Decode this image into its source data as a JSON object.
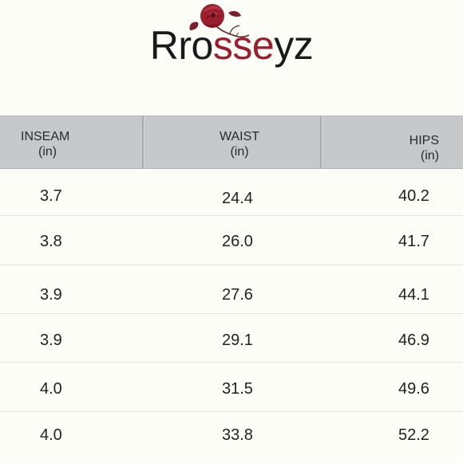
{
  "brand": {
    "part1": "Rro",
    "part2": "sse",
    "part3": "yz",
    "dark_color": "#1a1a1a",
    "accent_color": "#9a1e2e",
    "icon": "rose-icon"
  },
  "table": {
    "headers": [
      {
        "label": "INSEAM",
        "unit": "(in)"
      },
      {
        "label": "WAIST",
        "unit": "(in)"
      },
      {
        "label": "HIPS",
        "unit": "(in)"
      }
    ],
    "rows": [
      {
        "inseam": "3.7",
        "waist": "24.4",
        "hips": "40.2"
      },
      {
        "inseam": "3.8",
        "waist": "26.0",
        "hips": "41.7"
      },
      {
        "inseam": "3.9",
        "waist": "27.6",
        "hips": "44.1"
      },
      {
        "inseam": "3.9",
        "waist": "29.1",
        "hips": "46.9"
      },
      {
        "inseam": "4.0",
        "waist": "31.5",
        "hips": "49.6"
      },
      {
        "inseam": "4.0",
        "waist": "33.8",
        "hips": "52.2"
      }
    ],
    "header_bg": "#c7c8c9"
  }
}
